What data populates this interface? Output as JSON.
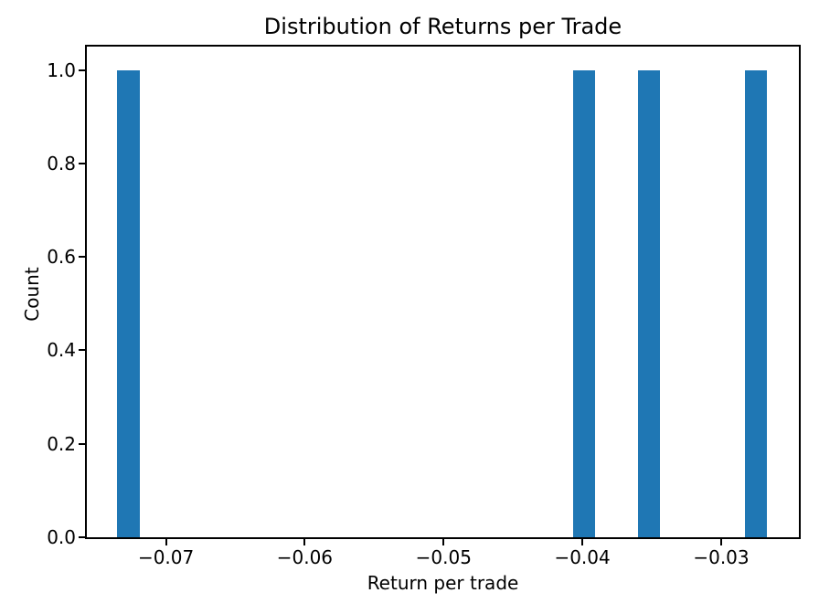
{
  "chart_data": {
    "type": "bar",
    "subtype": "histogram",
    "title": "Distribution of Returns per Trade",
    "xlabel": "Return per trade",
    "ylabel": "Count",
    "bar_color": "#1f77b4",
    "axis_color": "#000000",
    "background_color": "#ffffff",
    "grid": false,
    "legend": "none",
    "xlim": [
      -0.0757,
      -0.0244
    ],
    "ylim": [
      0,
      1.05
    ],
    "bin_width": 0.0016,
    "bars": [
      {
        "x_center": -0.0727,
        "count": 1
      },
      {
        "x_center": -0.0399,
        "count": 1
      },
      {
        "x_center": -0.0352,
        "count": 1
      },
      {
        "x_center": -0.0275,
        "count": 1
      }
    ],
    "values": [
      -0.0727,
      -0.0399,
      -0.0352,
      -0.0275
    ],
    "x_ticks": [
      {
        "value": -0.07,
        "label": "−0.07"
      },
      {
        "value": -0.06,
        "label": "−0.06"
      },
      {
        "value": -0.05,
        "label": "−0.05"
      },
      {
        "value": -0.04,
        "label": "−0.04"
      },
      {
        "value": -0.03,
        "label": "−0.03"
      }
    ],
    "y_ticks": [
      {
        "value": 0.0,
        "label": "0.0"
      },
      {
        "value": 0.2,
        "label": "0.2"
      },
      {
        "value": 0.4,
        "label": "0.4"
      },
      {
        "value": 0.6,
        "label": "0.6"
      },
      {
        "value": 0.8,
        "label": "0.8"
      },
      {
        "value": 1.0,
        "label": "1.0"
      }
    ]
  }
}
